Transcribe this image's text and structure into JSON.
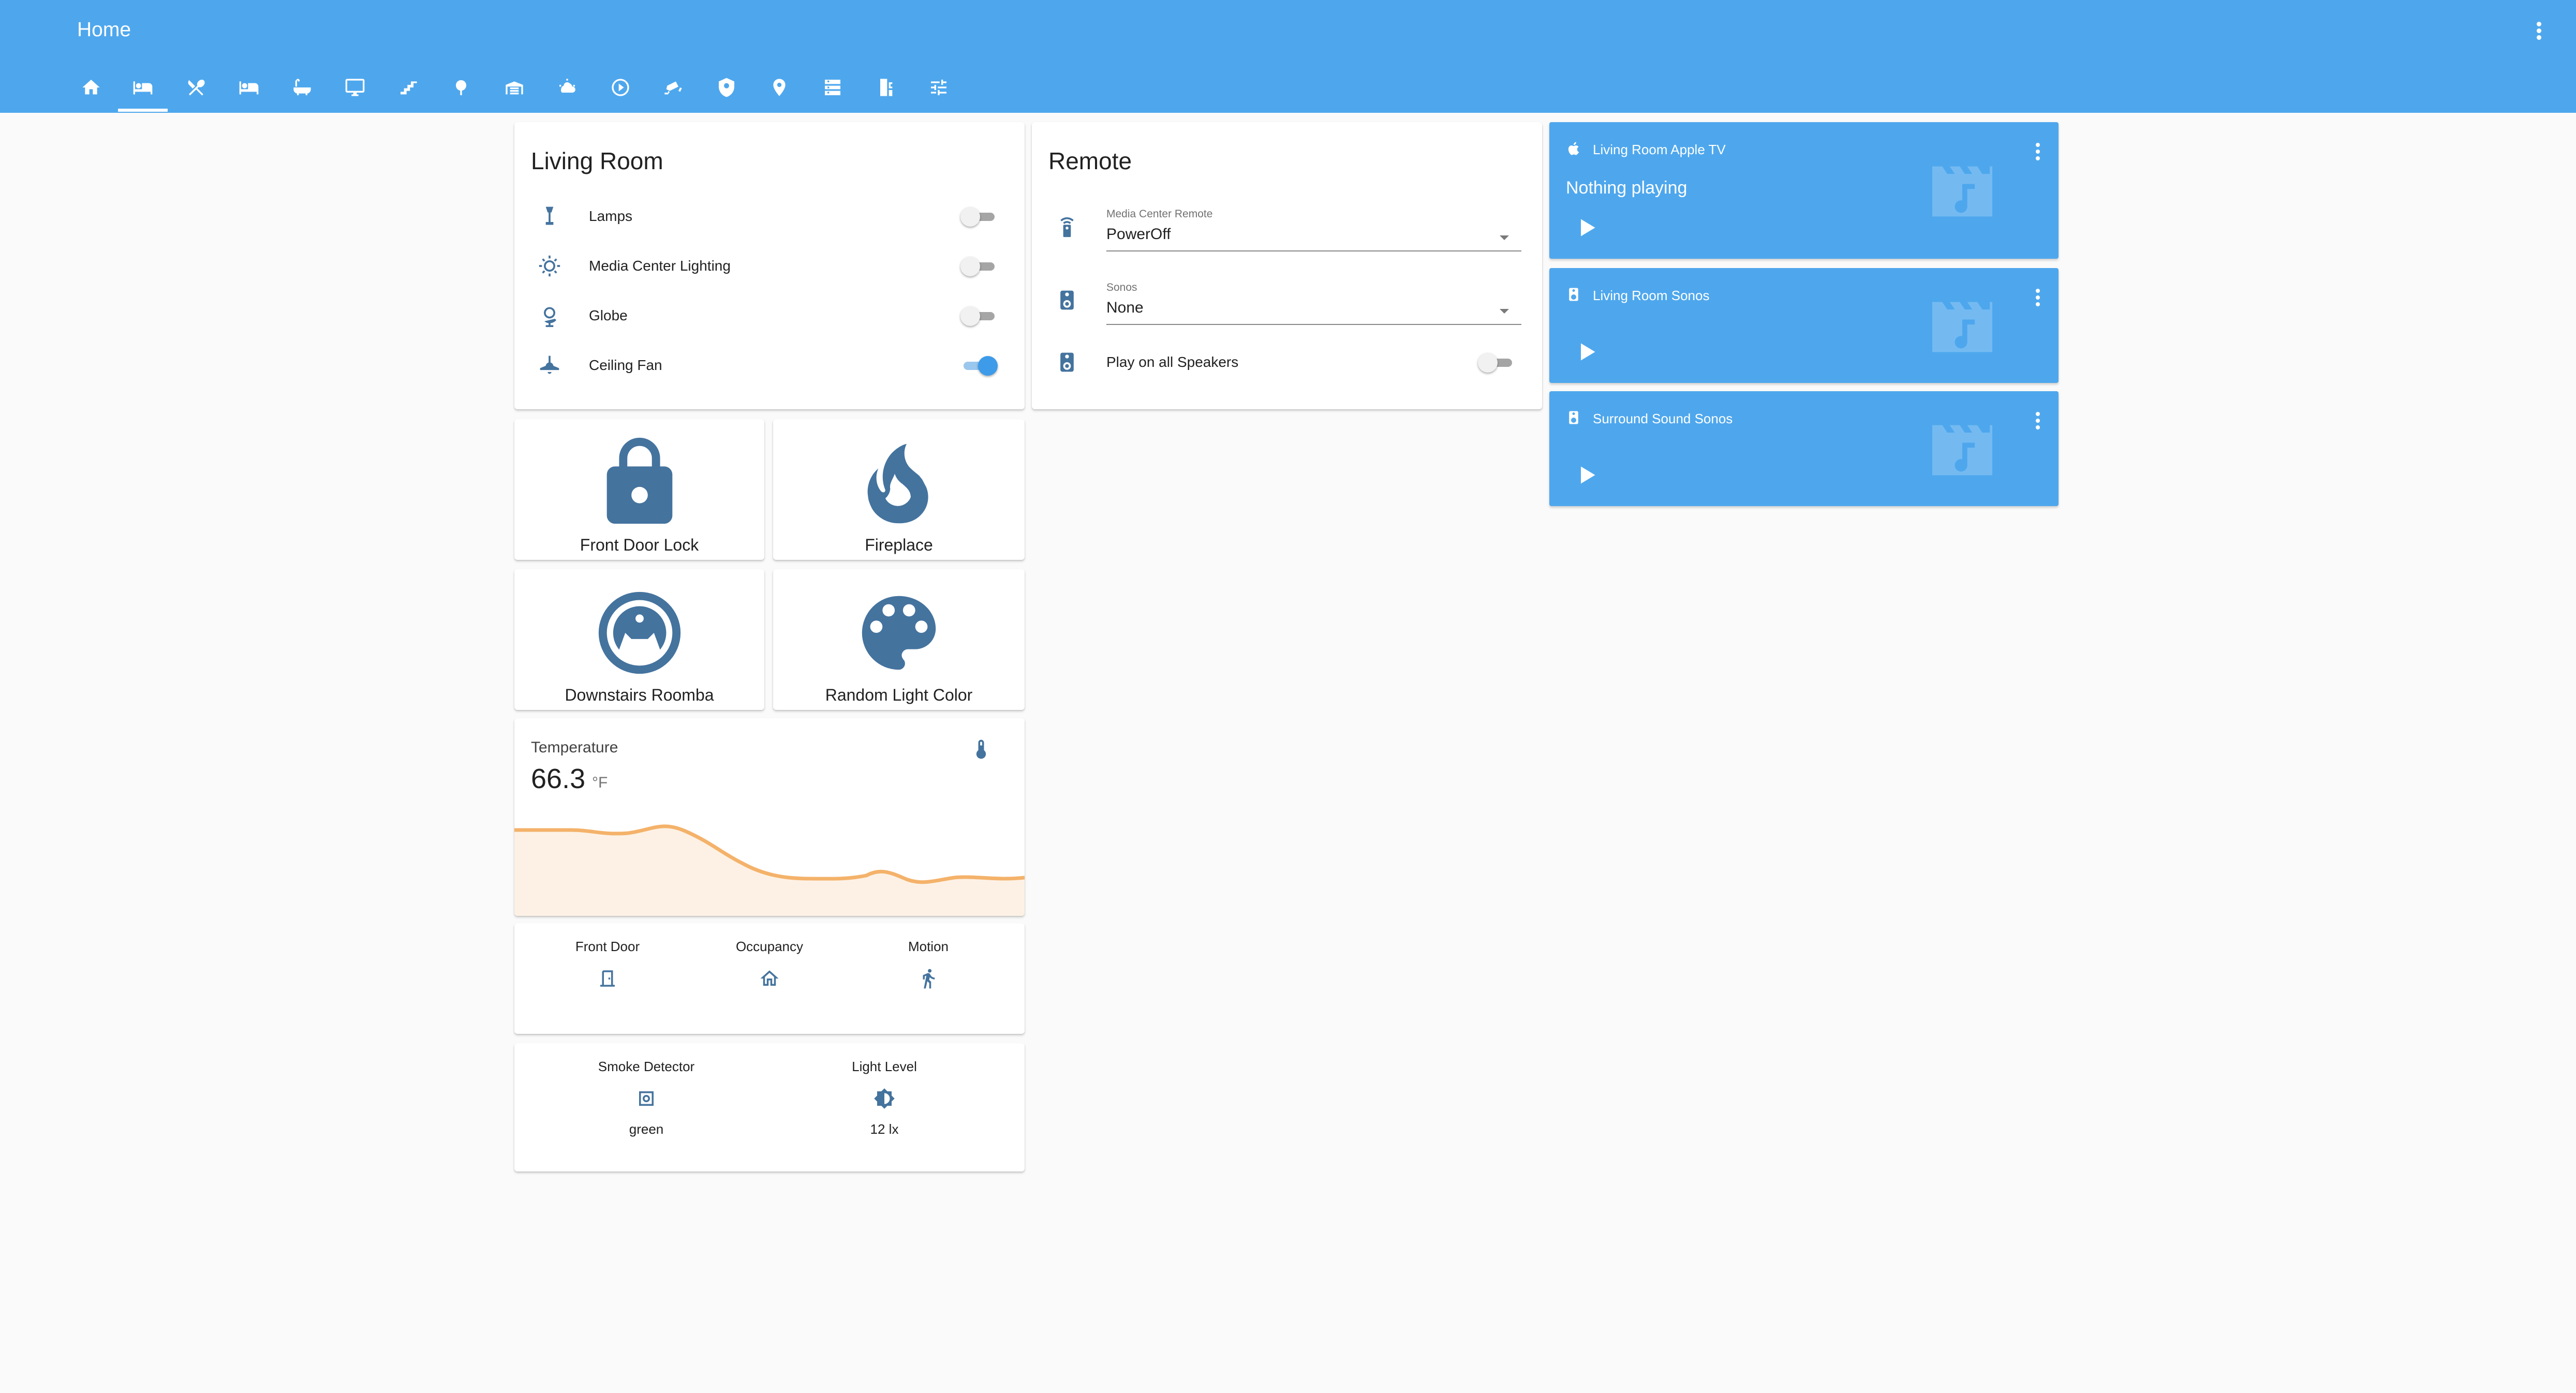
{
  "header": {
    "title": "Home",
    "tabs": [
      "home-icon",
      "sofa-icon",
      "silverware-icon",
      "bed-icon",
      "bathtub-icon",
      "monitor-icon",
      "stairs-icon",
      "tree-icon",
      "garage-icon",
      "weather-icon",
      "play-circle-icon",
      "security-camera-icon",
      "shield-icon",
      "map-marker-icon",
      "server-icon",
      "water-heater-icon",
      "tune-icon"
    ],
    "selected_tab": 1
  },
  "living_room": {
    "title": "Living Room",
    "rows": [
      {
        "label": "Lamps",
        "icon": "lamp-icon",
        "on": false
      },
      {
        "label": "Media Center Lighting",
        "icon": "led-strip-icon",
        "on": false
      },
      {
        "label": "Globe",
        "icon": "globe-icon",
        "on": false
      },
      {
        "label": "Ceiling Fan",
        "icon": "ceiling-fan-icon",
        "on": true
      }
    ]
  },
  "remote": {
    "title": "Remote",
    "media_center": {
      "label": "Media Center Remote",
      "value": "PowerOff"
    },
    "sonos": {
      "label": "Sonos",
      "value": "None"
    },
    "play_all": {
      "label": "Play on all Speakers",
      "on": false
    }
  },
  "buttons": [
    {
      "label": "Front Door Lock",
      "icon": "lock-icon"
    },
    {
      "label": "Fireplace",
      "icon": "fire-icon"
    },
    {
      "label": "Downstairs Roomba",
      "icon": "roomba-icon"
    },
    {
      "label": "Random Light Color",
      "icon": "palette-icon"
    }
  ],
  "temperature": {
    "name": "Temperature",
    "value": "66.3",
    "unit": "°F"
  },
  "glance1": [
    {
      "name": "Front Door",
      "icon": "door-icon"
    },
    {
      "name": "Occupancy",
      "icon": "home-outline-icon"
    },
    {
      "name": "Motion",
      "icon": "run-icon"
    }
  ],
  "glance2": [
    {
      "name": "Smoke Detector",
      "icon": "smoke-detector-icon",
      "state": "green"
    },
    {
      "name": "Light Level",
      "icon": "brightness-icon",
      "state": "12 lx"
    }
  ],
  "media_players": [
    {
      "name": "Living Room Apple TV",
      "icon": "apple-icon",
      "status": "Nothing playing"
    },
    {
      "name": "Living Room Sonos",
      "icon": "speaker-icon",
      "status": ""
    },
    {
      "name": "Surround Sound Sonos",
      "icon": "speaker-icon",
      "status": ""
    }
  ],
  "colors": {
    "primary": "#4ea7ed",
    "icon": "#44739e",
    "graph": "#f4b26a"
  }
}
